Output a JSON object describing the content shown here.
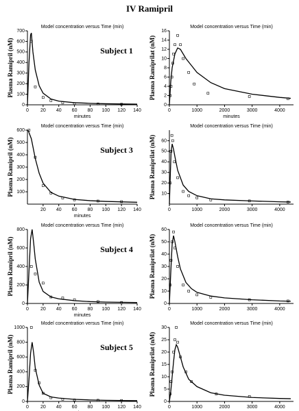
{
  "title": "IV Ramipril",
  "chart_data": [
    {
      "type": "line",
      "title": "Model concentration versus Time (min)",
      "annotation": "Subject 1",
      "xlabel": "minutes",
      "ylabel": "Plasma Ramipril (nM)",
      "xlim": [
        0,
        140
      ],
      "xticks": [
        0,
        20,
        40,
        60,
        80,
        100,
        120,
        140
      ],
      "ylim": [
        0,
        700
      ],
      "yticks": [
        0,
        100,
        200,
        300,
        400,
        500,
        600,
        700
      ],
      "series": [
        {
          "style": "line",
          "color": "#000000",
          "x": [
            0,
            2,
            4,
            5,
            7,
            10,
            15,
            20,
            30,
            40,
            60,
            80,
            100,
            140
          ],
          "values": [
            0,
            400,
            660,
            680,
            500,
            330,
            180,
            110,
            55,
            35,
            20,
            14,
            10,
            6
          ]
        },
        {
          "style": "points",
          "color": "#000000",
          "x": [
            5,
            10,
            20,
            30,
            45,
            60,
            90,
            120
          ],
          "values": [
            600,
            170,
            70,
            40,
            20,
            12,
            8,
            5
          ]
        }
      ]
    },
    {
      "type": "line",
      "title": "Model concentration versus Time (min)",
      "xlabel": "minutes",
      "ylabel": "Plasma Ramiprilat (nM)",
      "xlim": [
        0,
        4500
      ],
      "xticks": [
        0,
        1000,
        2000,
        3000,
        4000
      ],
      "ylim": [
        0,
        16
      ],
      "yticks": [
        0,
        2,
        4,
        6,
        8,
        10,
        12,
        14,
        16
      ],
      "series": [
        {
          "style": "line",
          "color": "#000000",
          "x": [
            0,
            50,
            100,
            200,
            300,
            400,
            600,
            800,
            1000,
            1500,
            2000,
            3000,
            4000,
            4400
          ],
          "values": [
            0,
            5,
            8,
            11,
            12.3,
            12,
            10,
            8.5,
            7,
            4.8,
            3.5,
            2.3,
            1.6,
            1.4
          ]
        },
        {
          "style": "points",
          "color": "#000000",
          "x": [
            30,
            60,
            90,
            120,
            150,
            200,
            300,
            400,
            500,
            700,
            900,
            1400,
            2900,
            4300
          ],
          "values": [
            2,
            4,
            6,
            9,
            11,
            13,
            15,
            13,
            10,
            7,
            4.5,
            2.5,
            1.8,
            1.3
          ]
        }
      ]
    },
    {
      "type": "line",
      "title": "Model concentration versus Time (min)",
      "annotation": "Subject 3",
      "xlabel": "minutes",
      "ylabel": "Plasma Ramipril (nM)",
      "xlim": [
        0,
        140
      ],
      "xticks": [
        20,
        40,
        60,
        80,
        100,
        120,
        140
      ],
      "ylim": [
        0,
        600
      ],
      "yticks": [
        100,
        200,
        300,
        400,
        500,
        600
      ],
      "series": [
        {
          "style": "line",
          "color": "#000000",
          "x": [
            1,
            2,
            5,
            10,
            15,
            20,
            30,
            40,
            60,
            80,
            100,
            140
          ],
          "values": [
            600,
            580,
            530,
            370,
            250,
            170,
            95,
            65,
            38,
            28,
            22,
            15
          ]
        },
        {
          "style": "points",
          "color": "#000000",
          "x": [
            2,
            10,
            20,
            30,
            45,
            60,
            90,
            120
          ],
          "values": [
            600,
            380,
            150,
            90,
            50,
            35,
            25,
            20
          ]
        }
      ]
    },
    {
      "type": "line",
      "title": "Model concentration versus Time (min)",
      "ylabel": "Plasma Ramiprilat (nM)",
      "xlim": [
        0,
        4500
      ],
      "xticks": [
        0,
        1000,
        2000,
        3000,
        4000
      ],
      "ylim": [
        0,
        70
      ],
      "yticks": [
        10,
        20,
        30,
        40,
        50,
        60
      ],
      "series": [
        {
          "style": "line",
          "color": "#000000",
          "x": [
            0,
            30,
            60,
            100,
            150,
            200,
            300,
            500,
            700,
            1000,
            1500,
            2000,
            3000,
            4000,
            4400
          ],
          "values": [
            0,
            25,
            48,
            57,
            52,
            45,
            32,
            18,
            12,
            8,
            5,
            4,
            3,
            2.2,
            2
          ]
        },
        {
          "style": "points",
          "color": "#000000",
          "x": [
            30,
            60,
            90,
            120,
            180,
            300,
            500,
            700,
            1000,
            1500,
            2900,
            4300
          ],
          "values": [
            20,
            50,
            65,
            60,
            40,
            25,
            12,
            8,
            6,
            4,
            3,
            2
          ]
        }
      ]
    },
    {
      "type": "line",
      "title": "Model concentration versus Time (min)",
      "annotation": "Subject 4",
      "xlabel": "minutes",
      "ylabel": "Plasma Ramipril (nM)",
      "xlim": [
        0,
        140
      ],
      "xticks": [
        0,
        20,
        40,
        60,
        80,
        100,
        120,
        140
      ],
      "ylim": [
        0,
        800
      ],
      "yticks": [
        0,
        200,
        400,
        600,
        800
      ],
      "series": [
        {
          "style": "line",
          "color": "#000000",
          "x": [
            0,
            2,
            4,
            6,
            8,
            10,
            15,
            20,
            30,
            40,
            60,
            80,
            100,
            140
          ],
          "values": [
            0,
            350,
            700,
            800,
            650,
            480,
            230,
            130,
            70,
            50,
            30,
            20,
            15,
            10
          ]
        },
        {
          "style": "points",
          "color": "#000000",
          "x": [
            5,
            10,
            20,
            30,
            45,
            60,
            90,
            120
          ],
          "values": [
            400,
            320,
            220,
            70,
            60,
            40,
            20,
            10
          ]
        }
      ]
    },
    {
      "type": "line",
      "title": "Model concentration versus Time (min)",
      "ylabel": "Plasma Ramiprilat (nM)",
      "xlim": [
        0,
        4500
      ],
      "xticks": [
        0,
        1000,
        2000,
        3000,
        4000
      ],
      "ylim": [
        0,
        60
      ],
      "yticks": [
        0,
        10,
        20,
        30,
        40,
        50,
        60
      ],
      "series": [
        {
          "style": "line",
          "color": "#000000",
          "x": [
            0,
            50,
            100,
            150,
            200,
            300,
            400,
            600,
            800,
            1000,
            1500,
            2000,
            3000,
            4000,
            4400
          ],
          "values": [
            0,
            25,
            48,
            55,
            50,
            38,
            28,
            17,
            12,
            9,
            6,
            4.5,
            3,
            2,
            1.8
          ]
        },
        {
          "style": "points",
          "color": "#000000",
          "x": [
            30,
            60,
            100,
            150,
            200,
            300,
            500,
            700,
            1000,
            1500,
            2900,
            4300
          ],
          "values": [
            15,
            35,
            50,
            58,
            45,
            30,
            15,
            10,
            7,
            5,
            3,
            2
          ]
        }
      ]
    },
    {
      "type": "line",
      "title": "Model concentration versus Time (min)",
      "annotation": "Subject 5",
      "xlabel": "minutes",
      "ylabel": "Plasma Ramipril (nM)",
      "xlim": [
        0,
        140
      ],
      "xticks": [
        0,
        20,
        40,
        60,
        80,
        100,
        120,
        140
      ],
      "ylim": [
        0,
        1000
      ],
      "yticks": [
        0,
        200,
        400,
        600,
        800,
        1000
      ],
      "series": [
        {
          "style": "line",
          "color": "#000000",
          "x": [
            0,
            2,
            4,
            6,
            8,
            10,
            15,
            20,
            30,
            40,
            60,
            80,
            100,
            140
          ],
          "values": [
            0,
            300,
            650,
            800,
            650,
            450,
            220,
            110,
            60,
            45,
            28,
            20,
            15,
            10
          ]
        },
        {
          "style": "points",
          "color": "#000000",
          "x": [
            5,
            10,
            15,
            20,
            30,
            45,
            60,
            90,
            120
          ],
          "values": [
            1000,
            420,
            250,
            110,
            50,
            30,
            20,
            15,
            12
          ]
        }
      ]
    },
    {
      "type": "line",
      "title": "Model concentration versus Time (min)",
      "ylabel": "Plasma Ramiprilat (nM)",
      "xlim": [
        0,
        4500
      ],
      "xticks": [
        0,
        1000,
        2000,
        3000,
        4000
      ],
      "ylim": [
        0,
        30
      ],
      "yticks": [
        0,
        5,
        10,
        15,
        20,
        25,
        30
      ],
      "series": [
        {
          "style": "line",
          "color": "#000000",
          "x": [
            0,
            50,
            100,
            150,
            200,
            250,
            300,
            400,
            500,
            700,
            1000,
            1500,
            2000,
            3000,
            4000,
            4400
          ],
          "values": [
            0,
            4,
            10,
            16,
            21,
            23,
            22,
            18,
            14,
            9,
            6,
            3.5,
            2.5,
            1.6,
            1.2,
            1.1
          ]
        },
        {
          "style": "points",
          "color": "#000000",
          "x": [
            30,
            60,
            100,
            150,
            200,
            250,
            300,
            400,
            600,
            800,
            1700,
            2900
          ],
          "values": [
            3,
            8,
            12,
            20,
            25,
            30,
            24,
            18,
            12,
            8,
            3,
            2
          ]
        }
      ]
    }
  ]
}
